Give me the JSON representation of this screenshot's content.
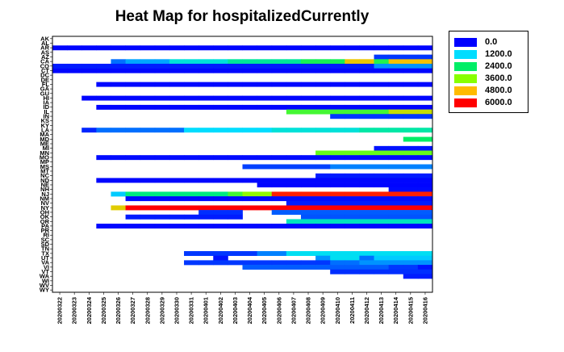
{
  "chart_data": {
    "type": "heatmap",
    "title": "Heat Map for hospitalizedCurrently",
    "xlabel": "",
    "ylabel": "",
    "x_categories": [
      "20200322",
      "20200323",
      "20200324",
      "20200325",
      "20200326",
      "20200327",
      "20200328",
      "20200329",
      "20200330",
      "20200331",
      "20200401",
      "20200402",
      "20200403",
      "20200404",
      "20200405",
      "20200406",
      "20200407",
      "20200408",
      "20200409",
      "20200410",
      "20200411",
      "20200412",
      "20200413",
      "20200414",
      "20200415",
      "20200416"
    ],
    "y_categories": [
      "AK",
      "AL",
      "AR",
      "AS",
      "AZ",
      "CA",
      "CO",
      "CT",
      "DC",
      "DE",
      "FL",
      "GA",
      "GU",
      "HI",
      "IA",
      "ID",
      "IL",
      "IN",
      "KS",
      "KY",
      "LA",
      "MA",
      "MD",
      "ME",
      "MI",
      "MN",
      "MO",
      "MP",
      "MS",
      "MT",
      "NC",
      "ND",
      "NE",
      "NH",
      "NJ",
      "NM",
      "NV",
      "NY",
      "OH",
      "OK",
      "OR",
      "PA",
      "PR",
      "RI",
      "SC",
      "SD",
      "TN",
      "TX",
      "UT",
      "VA",
      "VI",
      "VT",
      "WA",
      "WI",
      "WV",
      "WY"
    ],
    "legend": [
      {
        "label": "0.0",
        "color": "#0000ff"
      },
      {
        "label": "1200.0",
        "color": "#00ddff"
      },
      {
        "label": "2400.0",
        "color": "#00ee66"
      },
      {
        "label": "3600.0",
        "color": "#88ff00"
      },
      {
        "label": "4800.0",
        "color": "#ffbb00"
      },
      {
        "label": "6000.0",
        "color": "#ff0000"
      }
    ],
    "value_range": [
      0,
      6000
    ],
    "legend_placement": "right",
    "rows": [
      {
        "state": "AR",
        "segments": [
          [
            0,
            25,
            20
          ]
        ]
      },
      {
        "state": "AZ",
        "segments": [
          [
            22,
            25,
            300
          ]
        ]
      },
      {
        "state": "CA",
        "segments": [
          [
            4,
            4,
            600
          ],
          [
            5,
            7,
            900
          ],
          [
            8,
            11,
            1500
          ],
          [
            12,
            16,
            2000
          ],
          [
            17,
            19,
            2600
          ],
          [
            20,
            21,
            4600
          ],
          [
            22,
            22,
            2700
          ],
          [
            23,
            25,
            4700
          ]
        ]
      },
      {
        "state": "CO",
        "segments": [
          [
            0,
            21,
            150
          ],
          [
            22,
            25,
            800
          ]
        ]
      },
      {
        "state": "CT",
        "segments": [
          [
            0,
            25,
            30
          ]
        ]
      },
      {
        "state": "FL",
        "segments": [
          [
            3,
            25,
            40
          ]
        ]
      },
      {
        "state": "HI",
        "segments": [
          [
            2,
            25,
            20
          ]
        ]
      },
      {
        "state": "ID",
        "segments": [
          [
            3,
            25,
            20
          ]
        ]
      },
      {
        "state": "IL",
        "segments": [
          [
            16,
            22,
            3000
          ],
          [
            23,
            25,
            4200
          ]
        ]
      },
      {
        "state": "IN",
        "segments": [
          [
            19,
            25,
            300
          ]
        ]
      },
      {
        "state": "LA",
        "segments": [
          [
            2,
            2,
            200
          ],
          [
            3,
            8,
            600
          ],
          [
            9,
            14,
            1200
          ],
          [
            15,
            20,
            1500
          ],
          [
            21,
            25,
            1900
          ]
        ]
      },
      {
        "state": "MD",
        "segments": [
          [
            24,
            25,
            2400
          ]
        ]
      },
      {
        "state": "MI",
        "segments": [
          [
            22,
            25,
            100
          ]
        ]
      },
      {
        "state": "MN",
        "segments": [
          [
            18,
            25,
            3300
          ]
        ]
      },
      {
        "state": "MO",
        "segments": [
          [
            3,
            25,
            60
          ]
        ]
      },
      {
        "state": "MS",
        "segments": [
          [
            13,
            18,
            350
          ],
          [
            19,
            25,
            700
          ]
        ]
      },
      {
        "state": "NC",
        "segments": [
          [
            18,
            25,
            150
          ]
        ]
      },
      {
        "state": "ND",
        "segments": [
          [
            3,
            25,
            30
          ]
        ]
      },
      {
        "state": "NE",
        "segments": [
          [
            14,
            25,
            20
          ]
        ]
      },
      {
        "state": "NH",
        "segments": [
          [
            23,
            25,
            50
          ]
        ]
      },
      {
        "state": "NJ",
        "segments": [
          [
            4,
            4,
            1100
          ],
          [
            5,
            11,
            2200
          ],
          [
            12,
            12,
            3000
          ],
          [
            13,
            14,
            3700
          ],
          [
            15,
            25,
            5800
          ]
        ]
      },
      {
        "state": "NM",
        "segments": [
          [
            5,
            25,
            60
          ]
        ]
      },
      {
        "state": "NV",
        "segments": [
          [
            16,
            25,
            150
          ]
        ]
      },
      {
        "state": "NY",
        "segments": [
          [
            4,
            4,
            4500
          ],
          [
            5,
            25,
            6000
          ]
        ]
      },
      {
        "state": "OH",
        "segments": [
          [
            10,
            12,
            250
          ],
          [
            15,
            25,
            500
          ]
        ]
      },
      {
        "state": "OK",
        "segments": [
          [
            5,
            12,
            150
          ],
          [
            17,
            25,
            450
          ]
        ]
      },
      {
        "state": "OR",
        "segments": [
          [
            16,
            25,
            1700
          ]
        ]
      },
      {
        "state": "PA",
        "segments": [
          [
            3,
            25,
            40
          ]
        ]
      },
      {
        "state": "TX",
        "segments": [
          [
            9,
            13,
            300
          ],
          [
            14,
            15,
            700
          ],
          [
            16,
            25,
            1300
          ]
        ]
      },
      {
        "state": "UT",
        "segments": [
          [
            11,
            11,
            100
          ],
          [
            18,
            18,
            800
          ],
          [
            19,
            20,
            1300
          ],
          [
            21,
            21,
            600
          ],
          [
            22,
            25,
            1100
          ]
        ]
      },
      {
        "state": "VA",
        "segments": [
          [
            9,
            18,
            300
          ],
          [
            19,
            20,
            600
          ],
          [
            21,
            25,
            800
          ]
        ]
      },
      {
        "state": "VI",
        "segments": [
          [
            13,
            22,
            500
          ],
          [
            23,
            24,
            300
          ],
          [
            25,
            25,
            100
          ]
        ]
      },
      {
        "state": "VT",
        "segments": [
          [
            19,
            25,
            250
          ]
        ]
      },
      {
        "state": "WA",
        "segments": [
          [
            24,
            25,
            150
          ]
        ]
      }
    ]
  }
}
